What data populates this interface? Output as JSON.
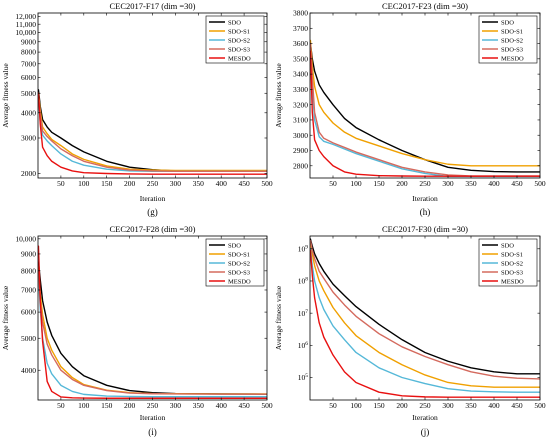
{
  "chart_data": [
    {
      "type": "line",
      "panel_label": "(g)",
      "title": "CEC2017-F17 (dim =30)",
      "xlabel": "Iteration",
      "ylabel": "Average fitness value",
      "y_scale": "log",
      "xlim": [
        0,
        500
      ],
      "ylim": [
        1900,
        12500
      ],
      "x_ticks": [
        50,
        100,
        150,
        200,
        250,
        300,
        350,
        400,
        450,
        500
      ],
      "y_ticks": [
        2000,
        3000,
        4000,
        5000,
        6000,
        7000,
        8000,
        9000,
        10000,
        11000,
        12000
      ],
      "y_tick_labels": [
        "2000",
        "3000",
        "4000",
        "5000",
        "6000",
        "7000",
        "8000",
        "9000",
        "10,000",
        "11,000",
        "12,000"
      ],
      "legend_position": "top-right",
      "x": [
        1,
        5,
        10,
        20,
        30,
        50,
        75,
        100,
        150,
        200,
        250,
        300,
        400,
        500
      ],
      "series": [
        {
          "name": "SDO",
          "values": [
            5200,
            4300,
            3700,
            3400,
            3200,
            3000,
            2750,
            2560,
            2300,
            2150,
            2090,
            2060,
            2050,
            2050
          ]
        },
        {
          "name": "SDO-S1",
          "values": [
            5000,
            4100,
            3400,
            3150,
            2950,
            2750,
            2500,
            2350,
            2180,
            2100,
            2080,
            2070,
            2070,
            2070
          ]
        },
        {
          "name": "SDO-S2",
          "values": [
            4600,
            3600,
            3100,
            2900,
            2750,
            2500,
            2300,
            2200,
            2100,
            2060,
            2050,
            2050,
            2050,
            2050
          ]
        },
        {
          "name": "SDO-S3",
          "values": [
            4900,
            3900,
            3250,
            3050,
            2900,
            2650,
            2450,
            2300,
            2150,
            2080,
            2060,
            2050,
            2050,
            2050
          ]
        },
        {
          "name": "MESDO",
          "values": [
            5000,
            3500,
            2700,
            2450,
            2300,
            2150,
            2060,
            2020,
            2000,
            1990,
            1985,
            1985,
            1985,
            1985
          ]
        }
      ]
    },
    {
      "type": "line",
      "panel_label": "(h)",
      "title": "CEC2017-F23 (dim =30)",
      "xlabel": "Iteration",
      "ylabel": "Average fitness value",
      "y_scale": "linear",
      "xlim": [
        0,
        500
      ],
      "ylim": [
        2720,
        3800
      ],
      "x_ticks": [
        50,
        100,
        150,
        200,
        250,
        300,
        350,
        400,
        450,
        500
      ],
      "y_ticks": [
        2800,
        2900,
        3000,
        3100,
        3200,
        3300,
        3400,
        3500,
        3600,
        3700,
        3800
      ],
      "y_tick_labels": [
        "2800",
        "2900",
        "3000",
        "3100",
        "3200",
        "3300",
        "3400",
        "3500",
        "3600",
        "3700",
        "3800"
      ],
      "legend_position": "top-right",
      "x": [
        1,
        5,
        10,
        20,
        30,
        50,
        75,
        100,
        150,
        200,
        250,
        300,
        350,
        400,
        450,
        500
      ],
      "series": [
        {
          "name": "SDO",
          "values": [
            3600,
            3500,
            3420,
            3330,
            3280,
            3200,
            3110,
            3050,
            2970,
            2900,
            2840,
            2790,
            2770,
            2762,
            2760,
            2760
          ]
        },
        {
          "name": "SDO-S1",
          "values": [
            3620,
            3450,
            3320,
            3200,
            3150,
            3080,
            3020,
            2980,
            2930,
            2880,
            2840,
            2810,
            2800,
            2800,
            2800,
            2800
          ]
        },
        {
          "name": "SDO-S2",
          "values": [
            3580,
            3300,
            3100,
            2990,
            2960,
            2940,
            2910,
            2880,
            2830,
            2780,
            2750,
            2730,
            2730,
            2730,
            2730,
            2730
          ]
        },
        {
          "name": "SDO-S3",
          "values": [
            3600,
            3380,
            3150,
            3020,
            2980,
            2950,
            2920,
            2890,
            2840,
            2790,
            2760,
            2740,
            2733,
            2733,
            2733,
            2733
          ]
        },
        {
          "name": "MESDO",
          "values": [
            3550,
            3150,
            2970,
            2900,
            2860,
            2800,
            2760,
            2745,
            2735,
            2733,
            2732,
            2732,
            2732,
            2732,
            2732,
            2732
          ]
        }
      ]
    },
    {
      "type": "line",
      "panel_label": "(i)",
      "title": "CEC2017-F28 (dim =30)",
      "xlabel": "Iteration",
      "ylabel": "Average fitness value",
      "y_scale": "log",
      "xlim": [
        0,
        500
      ],
      "ylim": [
        3250,
        10200
      ],
      "x_ticks": [
        50,
        100,
        150,
        200,
        250,
        300,
        350,
        400,
        450,
        500
      ],
      "y_ticks": [
        4000,
        5000,
        6000,
        7000,
        8000,
        9000,
        10000
      ],
      "y_tick_labels": [
        "4000",
        "5000",
        "6000",
        "7000",
        "8000",
        "9000",
        "10,000"
      ],
      "legend_position": "top-right",
      "x": [
        1,
        5,
        10,
        20,
        30,
        50,
        75,
        100,
        150,
        200,
        250,
        300,
        400,
        500
      ],
      "series": [
        {
          "name": "SDO",
          "values": [
            8500,
            7500,
            6500,
            5600,
            5100,
            4500,
            4100,
            3850,
            3600,
            3470,
            3420,
            3400,
            3390,
            3385
          ]
        },
        {
          "name": "SDO-S1",
          "values": [
            8200,
            6800,
            5900,
            5000,
            4600,
            4100,
            3800,
            3620,
            3480,
            3420,
            3400,
            3395,
            3390,
            3390
          ]
        },
        {
          "name": "SDO-S2",
          "values": [
            7800,
            6100,
            5000,
            4200,
            3900,
            3600,
            3450,
            3380,
            3340,
            3330,
            3325,
            3325,
            3325,
            3325
          ]
        },
        {
          "name": "SDO-S3",
          "values": [
            8000,
            6500,
            5600,
            4800,
            4450,
            4000,
            3750,
            3600,
            3470,
            3410,
            3395,
            3390,
            3385,
            3385
          ]
        },
        {
          "name": "MESDO",
          "values": [
            9500,
            6500,
            4900,
            3700,
            3450,
            3320,
            3300,
            3295,
            3290,
            3290,
            3290,
            3290,
            3290,
            3290
          ]
        }
      ]
    },
    {
      "type": "line",
      "panel_label": "(j)",
      "title": "CEC2017-F30 (dim =30)",
      "xlabel": "Iteration",
      "ylabel": "Average fitness value",
      "y_scale": "log",
      "xlim": [
        0,
        500
      ],
      "ylim": [
        20000,
        2500000000
      ],
      "x_ticks": [
        50,
        100,
        150,
        200,
        250,
        300,
        350,
        400,
        450,
        500
      ],
      "y_ticks": [
        100000,
        1000000,
        10000000,
        100000000,
        1000000000
      ],
      "y_tick_labels": [
        "10^5",
        "10^6",
        "10^7",
        "10^8",
        "10^9"
      ],
      "legend_position": "top-right",
      "x": [
        1,
        5,
        10,
        20,
        30,
        50,
        75,
        100,
        150,
        200,
        250,
        300,
        350,
        400,
        450,
        500
      ],
      "series": [
        {
          "name": "SDO",
          "values": [
            2000000000,
            1200000000,
            700000000,
            350000000,
            200000000,
            80000000,
            35000000,
            16000000,
            4500000,
            1500000,
            600000,
            320000,
            200000,
            150000,
            130000,
            130000
          ]
        },
        {
          "name": "SDO-S1",
          "values": [
            1500000000,
            700000000,
            300000000,
            100000000,
            50000000,
            15000000,
            5000000,
            2000000,
            600000,
            250000,
            120000,
            70000,
            55000,
            50000,
            50000,
            50000
          ]
        },
        {
          "name": "SDO-S2",
          "values": [
            1000000000,
            300000000,
            100000000,
            30000000,
            13000000,
            4000000,
            1500000,
            600000,
            200000,
            100000,
            65000,
            45000,
            38000,
            36000,
            35000,
            35000
          ]
        },
        {
          "name": "SDO-S3",
          "values": [
            1800000000,
            900000000,
            500000000,
            200000000,
            120000000,
            45000000,
            18000000,
            8000000,
            2300000,
            900000,
            450000,
            250000,
            150000,
            110000,
            95000,
            90000
          ]
        },
        {
          "name": "MESDO",
          "values": [
            900000000,
            150000000,
            30000000,
            5000000,
            1800000,
            500000,
            150000,
            70000,
            35000,
            27000,
            25000,
            24500,
            24500,
            24500,
            24500,
            24500
          ]
        }
      ]
    }
  ],
  "series_colors": {
    "SDO": "#000000",
    "SDO-S1": "#f0a000",
    "SDO-S2": "#55b8d8",
    "SDO-S3": "#d46a5e",
    "MESDO": "#e81010"
  }
}
